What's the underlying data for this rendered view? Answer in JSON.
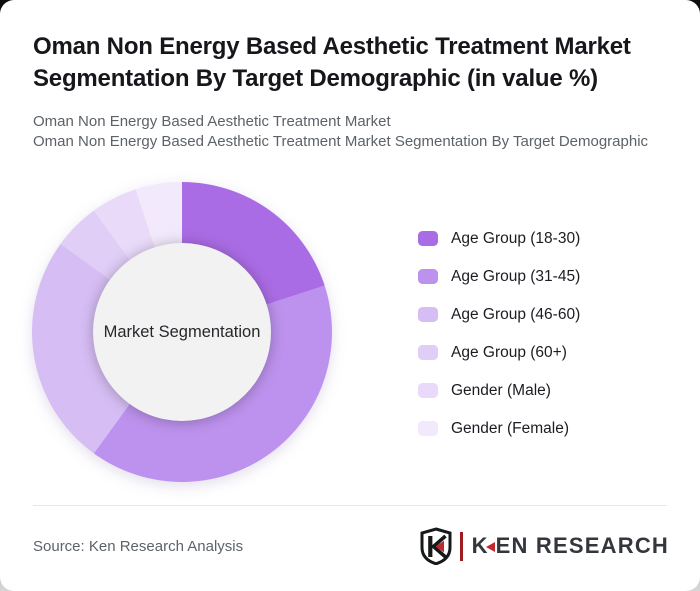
{
  "page": {
    "title": "Oman Non Energy Based Aesthetic Treatment Market Segmentation By Target Demographic (in value %)",
    "subtitles": [
      "Oman Non Energy Based Aesthetic Treatment Market",
      "Oman Non Energy Based Aesthetic Treatment Market Segmentation By Target Demographic"
    ]
  },
  "chart_data": {
    "type": "pie",
    "subtype": "donut",
    "title": "Oman Non Energy Based Aesthetic Treatment Market Segmentation By Target Demographic (in value %)",
    "center_label": "Market Segmentation",
    "unit": "value %",
    "start_angle_deg": 0,
    "direction": "clockwise",
    "legend_position": "right",
    "hole_color": "#f2f2f2",
    "segments": [
      {
        "label": "Age Group (18-30)",
        "value": 20,
        "color": "#aa6ce4"
      },
      {
        "label": "Age Group (31-45)",
        "value": 40,
        "color": "#bd92ee"
      },
      {
        "label": "Age Group (46-60)",
        "value": 25,
        "color": "#d6bef4"
      },
      {
        "label": "Age Group (60+)",
        "value": 5,
        "color": "#e1cef7"
      },
      {
        "label": "Gender (Male)",
        "value": 5,
        "color": "#e9daf9"
      },
      {
        "label": "Gender (Female)",
        "value": 5,
        "color": "#f2eafc"
      }
    ]
  },
  "footer": {
    "source": "Source: Ken Research Analysis",
    "logo": {
      "brand_k": "K",
      "brand_rest": "EN RESEARCH",
      "accent_color": "#c1272d"
    }
  }
}
